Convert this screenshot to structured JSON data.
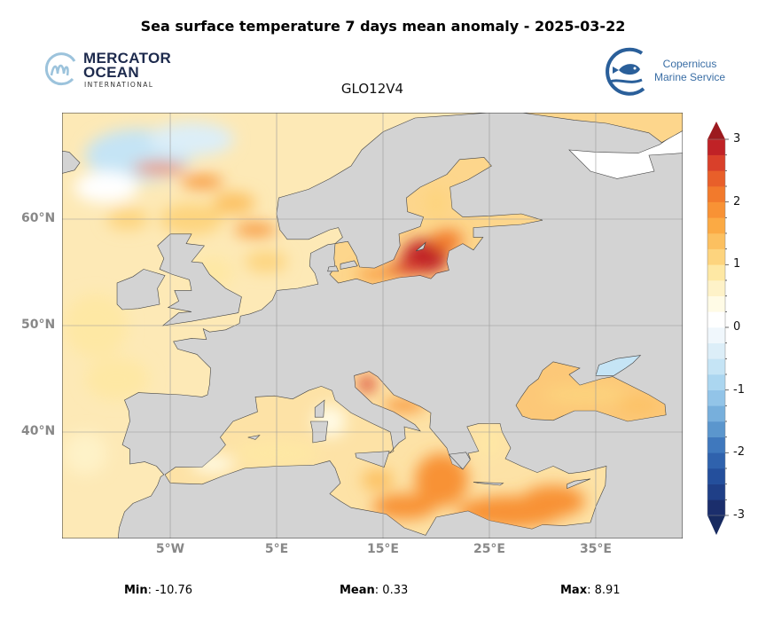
{
  "title": "Sea surface temperature 7 days mean anomaly - 2025-03-22",
  "subtitle": "GLO12V4",
  "logos": {
    "mercator": {
      "line1": "MERCATOR",
      "line2": "OCEAN",
      "line3": "INTERNATIONAL"
    },
    "copernicus": {
      "line1": "Copernicus",
      "line2": "Marine Service"
    }
  },
  "map": {
    "extent": {
      "lon_min": -15.17,
      "lon_max": 43.17,
      "lat_min": 30,
      "lat_max": 70
    },
    "lon_ticks": [
      {
        "value": -5,
        "label": "5°W"
      },
      {
        "value": 5,
        "label": "5°E"
      },
      {
        "value": 15,
        "label": "15°E"
      },
      {
        "value": 25,
        "label": "25°E"
      },
      {
        "value": 35,
        "label": "35°E"
      }
    ],
    "lat_ticks": [
      {
        "value": 60,
        "label": "60°N"
      },
      {
        "value": 50,
        "label": "50°N"
      },
      {
        "value": 40,
        "label": "40°N"
      }
    ],
    "land_color": "#d3d3d3",
    "sea_base_color": "#fde9b6"
  },
  "colorbar": {
    "min": -3,
    "max": 3,
    "ticks": [
      {
        "value": 3,
        "label": "3"
      },
      {
        "value": 2,
        "label": "2"
      },
      {
        "value": 1,
        "label": "1"
      },
      {
        "value": 0,
        "label": "0"
      },
      {
        "value": -1,
        "label": "-1"
      },
      {
        "value": -2,
        "label": "-2"
      },
      {
        "value": -3,
        "label": "-3"
      }
    ],
    "colors": [
      "#1b2e6c",
      "#1f3f87",
      "#244f9c",
      "#2f62ad",
      "#3f78bd",
      "#5b96cd",
      "#77afdc",
      "#92c4e8",
      "#abd6f0",
      "#c5e4f5",
      "#dceef8",
      "#f0f7fc",
      "#ffffff",
      "#fffbe6",
      "#fef2c8",
      "#fee8a4",
      "#fdd47e",
      "#fcc060",
      "#fbaa44",
      "#f89235",
      "#f27a2c",
      "#e85f2a",
      "#d9402a",
      "#c02226"
    ],
    "over_color": "#9c1a1f",
    "under_color": "#172a60"
  },
  "stats": {
    "min_label": "Min",
    "min_value": ": -10.76",
    "mean_label": "Mean",
    "mean_value": ": 0.33",
    "max_label": "Max",
    "max_value": ": 8.91"
  }
}
